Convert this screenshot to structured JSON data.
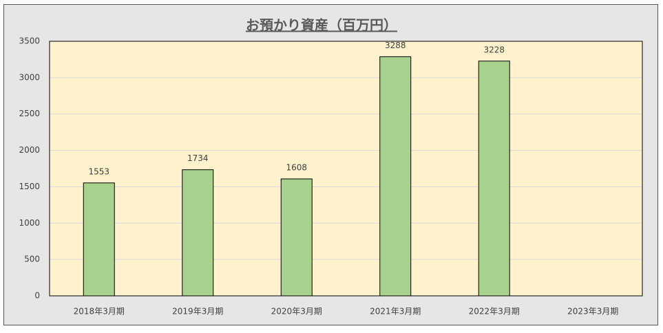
{
  "chart_data": {
    "type": "bar",
    "title": "お預かり資産（百万円）",
    "categories": [
      "2018年3月期",
      "2019年3月期",
      "2020年3月期",
      "2021年3月期",
      "2022年3月期",
      "2023年3月期"
    ],
    "values": [
      1553,
      1734,
      1608,
      3288,
      3228,
      null
    ],
    "color": "#a9d18e",
    "ylim": [
      0,
      3500
    ],
    "yticks": [
      0,
      500,
      1000,
      1500,
      2000,
      2500,
      3000,
      3500
    ],
    "grid": true
  }
}
